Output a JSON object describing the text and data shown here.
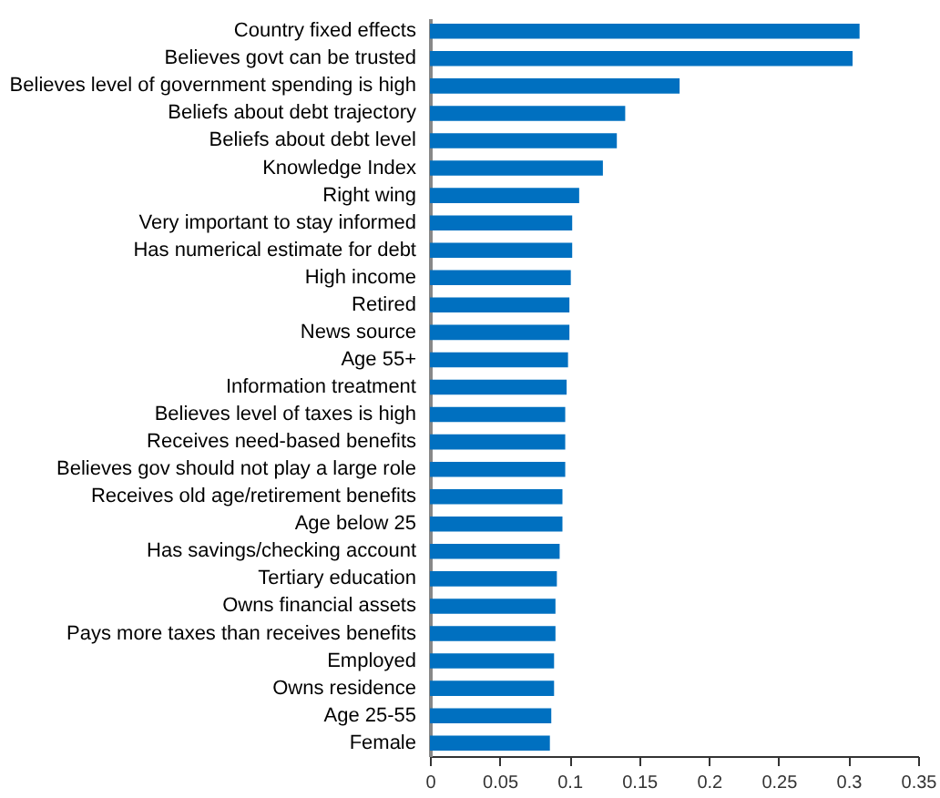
{
  "chart_data": {
    "type": "bar",
    "orientation": "horizontal",
    "categories": [
      "Country fixed effects",
      "Believes govt can be trusted",
      "Believes level of government spending is high",
      "Beliefs about debt trajectory",
      "Beliefs about debt level",
      "Knowledge Index",
      "Right wing",
      "Very important to stay informed",
      "Has numerical estimate for debt",
      "High income",
      "Retired",
      "News source",
      "Age 55+",
      "Information treatment",
      "Believes level of taxes is high",
      "Receives need-based benefits",
      "Believes gov should not play a large role",
      "Receives old age/retirement benefits",
      "Age below 25",
      "Has savings/checking account",
      "Tertiary education",
      "Owns financial assets",
      "Pays more taxes than receives benefits",
      "Employed",
      "Owns residence",
      "Age 25-55",
      "Female"
    ],
    "values": [
      0.308,
      0.303,
      0.179,
      0.14,
      0.134,
      0.124,
      0.107,
      0.102,
      0.102,
      0.101,
      0.1,
      0.1,
      0.099,
      0.098,
      0.097,
      0.097,
      0.097,
      0.095,
      0.095,
      0.093,
      0.091,
      0.09,
      0.09,
      0.089,
      0.089,
      0.087,
      0.086
    ],
    "color": "#0070c0",
    "xlim": [
      0,
      0.35
    ],
    "xticks": [
      0,
      0.05,
      0.1,
      0.15,
      0.2,
      0.25,
      0.3,
      0.35
    ],
    "grid": false
  }
}
